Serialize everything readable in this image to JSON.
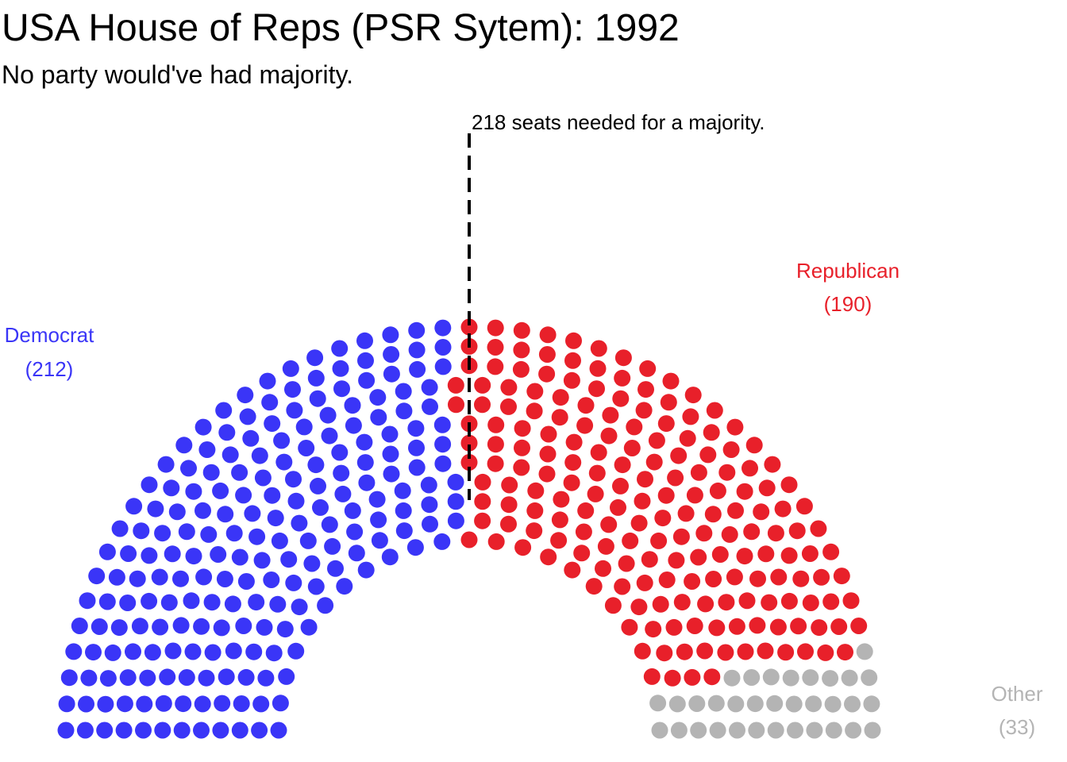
{
  "title": "USA House of Reps (PSR Sytem): 1992",
  "subtitle": "No party would've had majority.",
  "chart_data": {
    "type": "parliament",
    "total_seats": 435,
    "majority_threshold": 218,
    "majority_label": "218 seats needed for a majority.",
    "series": [
      {
        "name": "Democrat",
        "seats": 212,
        "seats_label": "(212)",
        "color": "#3a35f7"
      },
      {
        "name": "Republican",
        "seats": 190,
        "seats_label": "(190)",
        "color": "#e8202a"
      },
      {
        "name": "Other",
        "seats": 33,
        "seats_label": "(33)",
        "color": "#b4b4b4"
      }
    ]
  }
}
